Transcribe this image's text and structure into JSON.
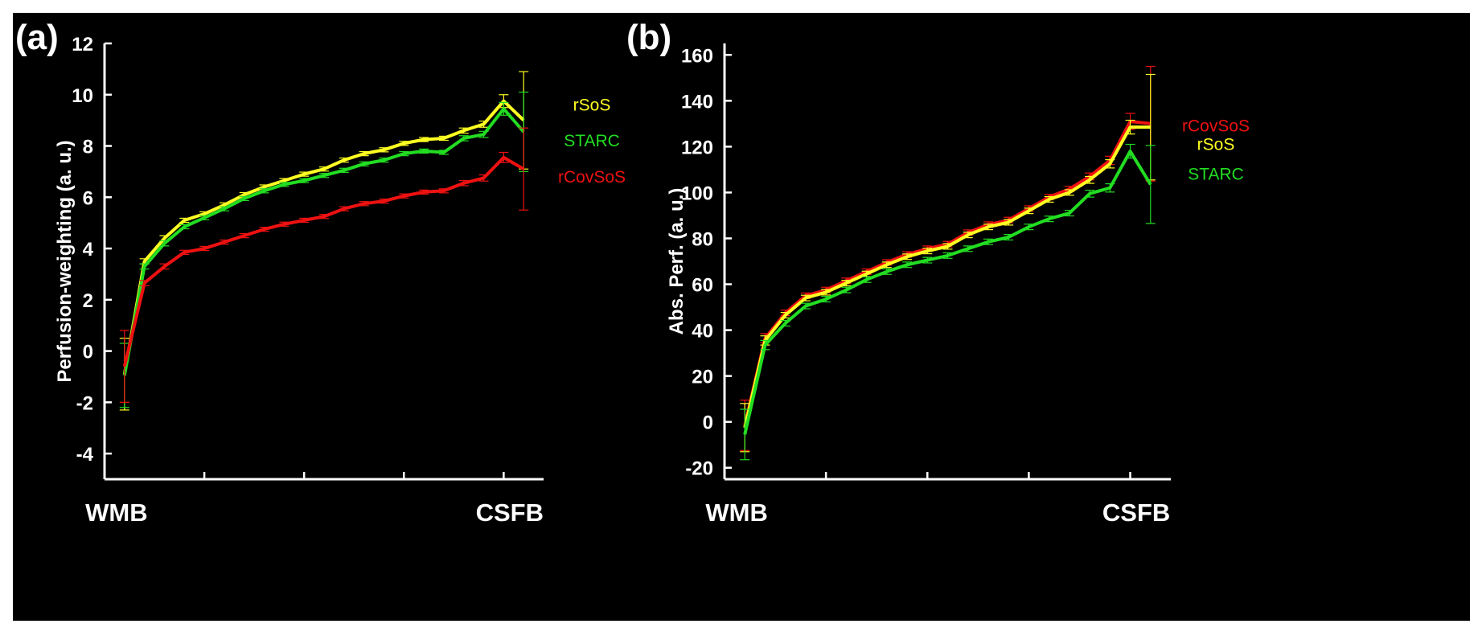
{
  "colors": {
    "background": "#000000",
    "axis": "#ffffff",
    "rSoS": "#ffff22",
    "STARC": "#22dd22",
    "rCovSoS": "#ee1111"
  },
  "chart_data": [
    {
      "type": "line",
      "panel_label": "(a)",
      "ylabel": "Perfusion-weighting (a. u.)",
      "xlabel": "",
      "x_category_labels": [
        "WMB",
        "CSFB"
      ],
      "x_range": [
        0,
        22
      ],
      "x_ticks": [
        0,
        5,
        10,
        15,
        20
      ],
      "ylim": [
        -5,
        12
      ],
      "y_ticks": [
        -4,
        -2,
        0,
        2,
        4,
        6,
        8,
        10,
        12
      ],
      "series": [
        {
          "name": "rSoS",
          "color": "#ffff22",
          "x": [
            1,
            2,
            3,
            4,
            5,
            6,
            7,
            8,
            9,
            10,
            11,
            12,
            13,
            14,
            15,
            16,
            17,
            18,
            19,
            20,
            21
          ],
          "values": [
            -0.9,
            3.5,
            4.4,
            5.1,
            5.35,
            5.7,
            6.1,
            6.4,
            6.65,
            6.9,
            7.1,
            7.45,
            7.7,
            7.85,
            8.1,
            8.25,
            8.3,
            8.6,
            8.85,
            9.75,
            9.0
          ],
          "err": [
            1.4,
            0.1,
            0.1,
            0.08,
            0.08,
            0.08,
            0.08,
            0.08,
            0.08,
            0.08,
            0.08,
            0.08,
            0.08,
            0.08,
            0.08,
            0.08,
            0.08,
            0.1,
            0.12,
            0.25,
            1.9
          ]
        },
        {
          "name": "STARC",
          "color": "#22dd22",
          "x": [
            1,
            2,
            3,
            4,
            5,
            6,
            7,
            8,
            9,
            10,
            11,
            12,
            13,
            14,
            15,
            16,
            17,
            18,
            19,
            20,
            21
          ],
          "values": [
            -0.95,
            3.3,
            4.2,
            4.85,
            5.2,
            5.55,
            5.95,
            6.25,
            6.5,
            6.65,
            6.85,
            7.05,
            7.3,
            7.45,
            7.7,
            7.8,
            7.75,
            8.3,
            8.45,
            9.45,
            8.55
          ],
          "err": [
            1.25,
            0.1,
            0.1,
            0.08,
            0.08,
            0.08,
            0.08,
            0.08,
            0.08,
            0.08,
            0.08,
            0.08,
            0.08,
            0.08,
            0.08,
            0.08,
            0.08,
            0.1,
            0.12,
            0.25,
            1.55
          ]
        },
        {
          "name": "rCovSoS",
          "color": "#ee1111",
          "x": [
            1,
            2,
            3,
            4,
            5,
            6,
            7,
            8,
            9,
            10,
            11,
            12,
            13,
            14,
            15,
            16,
            17,
            18,
            19,
            20,
            21
          ],
          "values": [
            -0.6,
            2.65,
            3.3,
            3.85,
            4.0,
            4.25,
            4.5,
            4.75,
            4.95,
            5.1,
            5.25,
            5.55,
            5.75,
            5.85,
            6.05,
            6.2,
            6.25,
            6.55,
            6.75,
            7.55,
            7.1
          ],
          "err": [
            1.4,
            0.1,
            0.1,
            0.08,
            0.08,
            0.08,
            0.08,
            0.08,
            0.08,
            0.08,
            0.08,
            0.08,
            0.08,
            0.08,
            0.08,
            0.08,
            0.08,
            0.1,
            0.12,
            0.2,
            1.6
          ]
        }
      ]
    },
    {
      "type": "line",
      "panel_label": "(b)",
      "ylabel": "Abs. Perf. (a. u.)",
      "xlabel": "",
      "x_category_labels": [
        "WMB",
        "CSFB"
      ],
      "x_range": [
        0,
        22
      ],
      "x_ticks": [
        0,
        5,
        10,
        15,
        20
      ],
      "ylim": [
        -25,
        165
      ],
      "y_ticks": [
        -20,
        0,
        20,
        40,
        60,
        80,
        100,
        120,
        140,
        160
      ],
      "series": [
        {
          "name": "rCovSoS",
          "color": "#ee1111",
          "x": [
            1,
            2,
            3,
            4,
            5,
            6,
            7,
            8,
            9,
            10,
            11,
            12,
            13,
            14,
            15,
            16,
            17,
            18,
            19,
            20,
            21
          ],
          "values": [
            -1.5,
            36.5,
            47.5,
            55.0,
            57.5,
            61.5,
            65.5,
            69.5,
            73.0,
            75.5,
            77.5,
            82.5,
            86.0,
            88.0,
            93.0,
            98.0,
            101.5,
            107.0,
            114.0,
            131.0,
            130.0
          ],
          "err": [
            11.0,
            2.0,
            1.2,
            1.2,
            1.2,
            1.2,
            1.2,
            1.2,
            1.2,
            1.2,
            1.2,
            1.2,
            1.2,
            1.2,
            1.2,
            1.2,
            1.2,
            1.5,
            1.8,
            3.5,
            25.0
          ]
        },
        {
          "name": "rSoS",
          "color": "#ffff22",
          "x": [
            1,
            2,
            3,
            4,
            5,
            6,
            7,
            8,
            9,
            10,
            11,
            12,
            13,
            14,
            15,
            16,
            17,
            18,
            19,
            20,
            21
          ],
          "values": [
            -2.5,
            35.5,
            46.5,
            54.0,
            56.5,
            60.5,
            64.5,
            68.5,
            72.0,
            74.5,
            76.5,
            81.5,
            85.0,
            87.0,
            92.0,
            97.0,
            100.0,
            105.5,
            112.5,
            128.5,
            128.5
          ],
          "err": [
            10.5,
            2.0,
            1.2,
            1.2,
            1.2,
            1.2,
            1.2,
            1.2,
            1.2,
            1.2,
            1.2,
            1.2,
            1.2,
            1.2,
            1.2,
            1.2,
            1.2,
            1.5,
            1.8,
            3.0,
            23.0
          ]
        },
        {
          "name": "STARC",
          "color": "#22dd22",
          "x": [
            1,
            2,
            3,
            4,
            5,
            6,
            7,
            8,
            9,
            10,
            11,
            12,
            13,
            14,
            15,
            16,
            17,
            18,
            19,
            20,
            21
          ],
          "values": [
            -5.5,
            33.5,
            43.0,
            50.5,
            53.5,
            57.5,
            62.0,
            65.5,
            68.5,
            70.5,
            72.5,
            75.5,
            78.5,
            80.5,
            85.0,
            88.5,
            91.0,
            99.5,
            102.0,
            118.0,
            103.5
          ],
          "err": [
            11.0,
            2.0,
            1.2,
            1.2,
            1.2,
            1.2,
            1.2,
            1.2,
            1.2,
            1.2,
            1.2,
            1.2,
            1.2,
            1.2,
            1.2,
            1.2,
            1.2,
            1.5,
            1.8,
            3.0,
            17.0
          ]
        }
      ]
    }
  ],
  "legend_order": [
    [
      {
        "name": "rSoS",
        "value": 9.6
      },
      {
        "name": "STARC",
        "value": 8.2
      },
      {
        "name": "rCovSoS",
        "value": 6.8
      }
    ],
    [
      {
        "name": "rCovSoS",
        "value": 129
      },
      {
        "name": "rSoS",
        "value": 121
      },
      {
        "name": "STARC",
        "value": 108
      }
    ]
  ]
}
